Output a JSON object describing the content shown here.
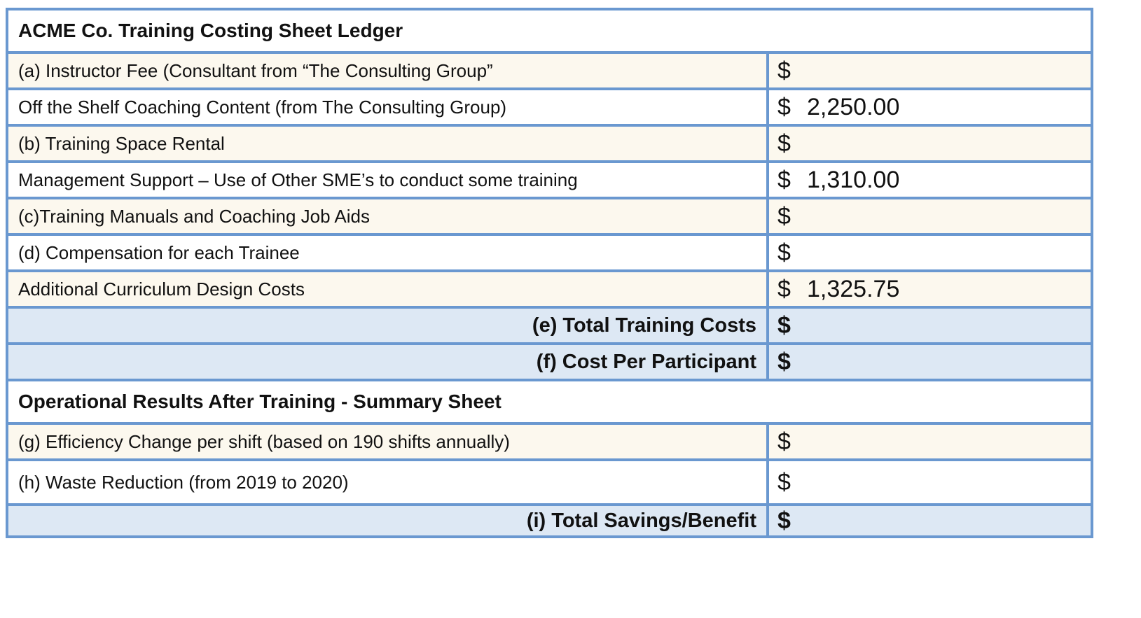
{
  "ledger": {
    "title": "ACME Co. Training Costing Sheet Ledger",
    "currency": "$",
    "rows": [
      {
        "label": "(a) Instructor Fee (Consultant from “The Consulting Group”",
        "value": ""
      },
      {
        "label": "Off the Shelf Coaching Content (from The Consulting Group)",
        "value": "2,250.00"
      },
      {
        "label": "(b) Training Space Rental",
        "value": ""
      },
      {
        "label": "Management Support – Use of Other SME’s to conduct some training",
        "value": "1,310.00"
      },
      {
        "label": "(c)Training Manuals and Coaching Job Aids",
        "value": ""
      },
      {
        "label": "(d) Compensation for each Trainee",
        "value": ""
      },
      {
        "label": "Additional Curriculum Design Costs",
        "value": "1,325.75"
      }
    ],
    "totals": [
      {
        "label": "(e) Total Training Costs",
        "value": ""
      },
      {
        "label": "(f) Cost Per Participant",
        "value": ""
      }
    ]
  },
  "summary": {
    "title": "Operational Results After Training - Summary Sheet",
    "rows": [
      {
        "label": "(g) Efficiency Change per shift (based on 190 shifts annually)",
        "value": ""
      },
      {
        "label": "(h) Waste Reduction (from 2019 to 2020)",
        "value": ""
      }
    ],
    "total": {
      "label": "(i) Total Savings/Benefit",
      "value": ""
    }
  },
  "colors": {
    "border": "#6a98d0",
    "row_cream": "#fcf8ee",
    "row_white": "#ffffff",
    "total_blue": "#dde8f4"
  }
}
